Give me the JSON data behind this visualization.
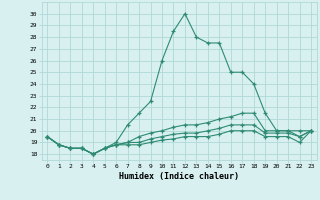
{
  "x": [
    0,
    1,
    2,
    3,
    4,
    5,
    6,
    7,
    8,
    9,
    10,
    11,
    12,
    13,
    14,
    15,
    16,
    17,
    18,
    19,
    20,
    21,
    22,
    23
  ],
  "series": [
    [
      19.5,
      18.8,
      18.5,
      18.5,
      18.0,
      18.5,
      19.0,
      20.5,
      21.5,
      22.5,
      26.0,
      28.5,
      30.0,
      28.0,
      27.5,
      27.5,
      25.0,
      25.0,
      24.0,
      21.5,
      20.0,
      20.0,
      20.0,
      20.0
    ],
    [
      19.5,
      18.8,
      18.5,
      18.5,
      18.0,
      18.5,
      18.8,
      19.0,
      19.5,
      19.8,
      20.0,
      20.3,
      20.5,
      20.5,
      20.7,
      21.0,
      21.2,
      21.5,
      21.5,
      20.0,
      20.0,
      20.0,
      19.5,
      20.0
    ],
    [
      19.5,
      18.8,
      18.5,
      18.5,
      18.0,
      18.5,
      18.8,
      19.0,
      19.0,
      19.3,
      19.5,
      19.7,
      19.8,
      19.8,
      20.0,
      20.2,
      20.5,
      20.5,
      20.5,
      19.8,
      19.8,
      19.8,
      19.5,
      20.0
    ],
    [
      19.5,
      18.8,
      18.5,
      18.5,
      18.0,
      18.5,
      18.8,
      18.8,
      18.8,
      19.0,
      19.2,
      19.3,
      19.5,
      19.5,
      19.5,
      19.7,
      20.0,
      20.0,
      20.0,
      19.5,
      19.5,
      19.5,
      19.0,
      20.0
    ]
  ],
  "line_color": "#2e8b72",
  "bg_color": "#d8f0f0",
  "grid_color": "#b0d8d8",
  "xlabel": "Humidex (Indice chaleur)",
  "ylim": [
    17.5,
    31
  ],
  "xlim": [
    -0.5,
    23.5
  ],
  "yticks": [
    18,
    19,
    20,
    21,
    22,
    23,
    24,
    25,
    26,
    27,
    28,
    29,
    30
  ],
  "xticks": [
    0,
    1,
    2,
    3,
    4,
    5,
    6,
    7,
    8,
    9,
    10,
    11,
    12,
    13,
    14,
    15,
    16,
    17,
    18,
    19,
    20,
    21,
    22,
    23
  ]
}
